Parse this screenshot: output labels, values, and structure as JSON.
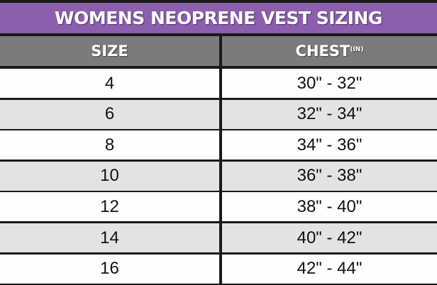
{
  "title": "WOMENS NEOPRENE VEST SIZING",
  "columns": {
    "size": "SIZE",
    "chest": "CHEST",
    "chest_unit": "(IN)"
  },
  "rows": [
    {
      "size": "4",
      "chest": "30\" - 32\""
    },
    {
      "size": "6",
      "chest": "32\" - 34\""
    },
    {
      "size": "8",
      "chest": "34\" - 36\""
    },
    {
      "size": "10",
      "chest": "36\" - 38\""
    },
    {
      "size": "12",
      "chest": "38\" - 40\""
    },
    {
      "size": "14",
      "chest": "40\" - 42\""
    },
    {
      "size": "16",
      "chest": "42\" - 44\""
    }
  ],
  "colors": {
    "title_bg": "#8b5fae",
    "header_bg": "#7b7b7b",
    "row_alt": "#e3e3e3",
    "border": "#1a1a1a"
  }
}
